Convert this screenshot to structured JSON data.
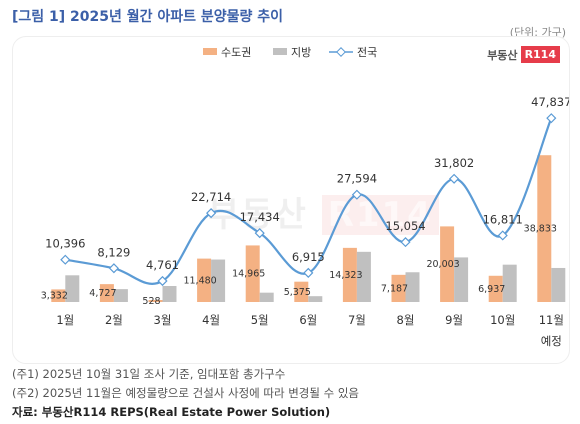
{
  "title": "[그림 1] 2025년 월간 아파트 분양물량 추이",
  "unit": "(단위: 가구)",
  "logo": {
    "text": "부동산",
    "mark": "R114"
  },
  "notes": [
    "(주1) 2025년 10월 31일 조사 기준, 임대포함 총가구수",
    "(주2) 2025년 11월은 예정물량으로 건설사 사정에 따라 변경될 수 있음"
  ],
  "source": "자료: 부동산R114 REPS(Real Estate Power Solution)",
  "colors": {
    "metro": "#f4b183",
    "local": "#c0c0c0",
    "national": "#5b9bd5",
    "title": "#3b5fa8"
  },
  "chart_data": {
    "type": "bar",
    "categories": [
      "1월",
      "2월",
      "3월",
      "4월",
      "5월",
      "6월",
      "7월",
      "8월",
      "9월",
      "10월",
      "11월"
    ],
    "category_sublabels": [
      "",
      "",
      "",
      "",
      "",
      "",
      "",
      "",
      "",
      "",
      "예정"
    ],
    "series": [
      {
        "name": "수도권",
        "type": "bar",
        "values": [
          3332,
          4727,
          528,
          11480,
          14965,
          5375,
          14323,
          7187,
          20003,
          6937,
          38833
        ]
      },
      {
        "name": "지방",
        "type": "bar",
        "values": [
          7064,
          3402,
          4233,
          11234,
          2469,
          1540,
          13271,
          7867,
          11799,
          9874,
          9004
        ]
      },
      {
        "name": "전국",
        "type": "line",
        "values": [
          10396,
          8129,
          4761,
          22714,
          17434,
          6915,
          27594,
          15054,
          31802,
          16811,
          47837
        ]
      }
    ],
    "bar_labels": [
      "3,332",
      "4,727",
      "528",
      "11,480",
      "14,965",
      "5,375",
      "14,323",
      "7,187",
      "20,003",
      "6,937",
      "38,833"
    ],
    "line_labels": [
      "10,396",
      "8,129",
      "4,761",
      "22,714",
      "17,434",
      "6,915",
      "27,594",
      "15,054",
      "31,802",
      "16,811",
      "47,837"
    ],
    "legend_position": "top",
    "grid": false
  }
}
